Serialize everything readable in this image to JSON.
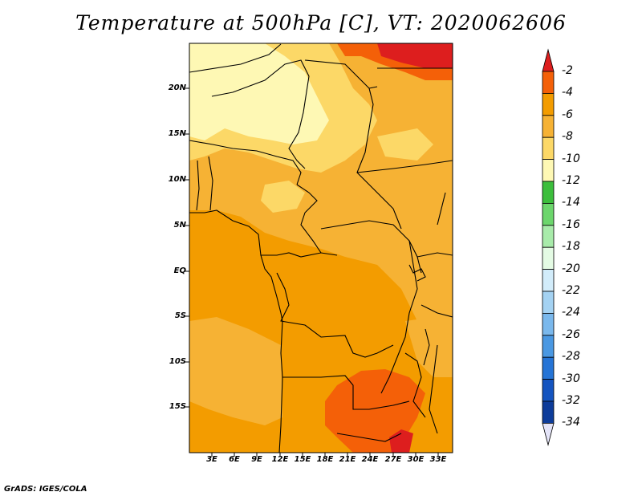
{
  "title": "Temperature at 500hPa [C], VT: 2020062606",
  "credit": "GrADS: IGES/COLA",
  "map": {
    "lat_ticks": [
      "20N",
      "15N",
      "10N",
      "5N",
      "EQ",
      "5S",
      "10S",
      "15S"
    ],
    "lon_ticks": [
      "3E",
      "6E",
      "9E",
      "12E",
      "15E",
      "18E",
      "21E",
      "24E",
      "27E",
      "30E",
      "33E"
    ]
  },
  "colorbar": {
    "labels": [
      "-2",
      "-4",
      "-6",
      "-8",
      "-10",
      "-12",
      "-14",
      "-16",
      "-18",
      "-20",
      "-22",
      "-24",
      "-26",
      "-28",
      "-30",
      "-32",
      "-34"
    ],
    "colors": [
      "#dd1e1e",
      "#f46008",
      "#f39c00",
      "#f6b234",
      "#fcd867",
      "#fef8b4",
      "#3cbe3c",
      "#6cd66c",
      "#a8ebaa",
      "#e4fbe4",
      "#d2ecfa",
      "#a4d2f2",
      "#7ab8ec",
      "#4a98e2",
      "#2574d6",
      "#1454c0",
      "#0d3c9a",
      "#061478",
      "#e4e4f8"
    ]
  }
}
